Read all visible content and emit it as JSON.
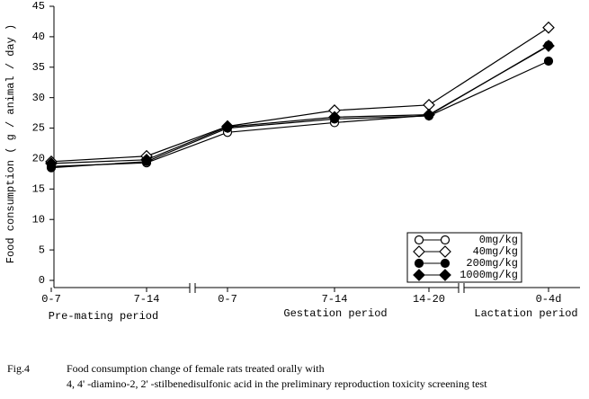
{
  "chart_data": {
    "type": "line",
    "ylabel": "Food consumption ( g / animal / day )",
    "categories": [
      "0-7",
      "7-14",
      "0-7",
      "7-14",
      "14-20",
      "0-4d"
    ],
    "periods": [
      "Pre-mating period",
      "Gestation period",
      "Lactation period"
    ],
    "ylim": [
      0,
      45
    ],
    "yticks": [
      0,
      5,
      10,
      15,
      20,
      25,
      30,
      35,
      40,
      45
    ],
    "series": [
      {
        "name": "0mg/kg",
        "color": "#000000",
        "marker": "circle",
        "filled": false,
        "values": [
          18.7,
          19.3,
          24.3,
          25.9,
          27.1,
          38.6
        ]
      },
      {
        "name": "40mg/kg",
        "color": "#000000",
        "marker": "diamond",
        "filled": false,
        "values": [
          19.5,
          20.4,
          25.3,
          27.9,
          28.8,
          41.5
        ]
      },
      {
        "name": "200mg/kg",
        "color": "#000000",
        "marker": "circle",
        "filled": true,
        "values": [
          18.5,
          19.5,
          25.0,
          26.5,
          27.0,
          36.0
        ]
      },
      {
        "name": "1000mg/kg",
        "color": "#000000",
        "marker": "diamond",
        "filled": true,
        "values": [
          19.2,
          19.8,
          25.2,
          26.8,
          27.2,
          38.5
        ]
      }
    ],
    "legend": "lower right",
    "caption": {
      "label": "Fig.4",
      "lines": [
        "Food consumption change of female rats treated orally with",
        "4, 4' -diamino-2, 2' -stilbenedisulfonic acid in the preliminary reproduction toxicity screening test"
      ]
    }
  }
}
